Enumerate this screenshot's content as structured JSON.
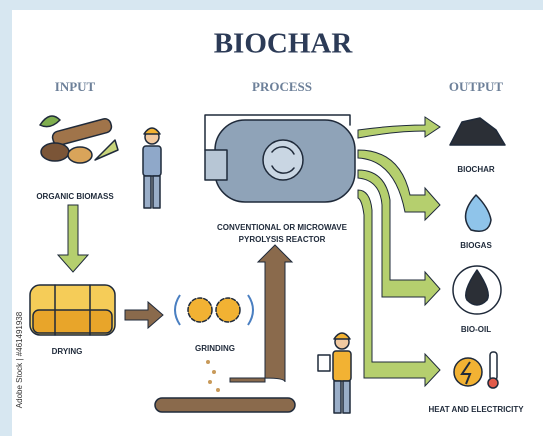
{
  "header": {
    "title": "BIOCHAR"
  },
  "columns": [
    "INPUT",
    "PROCESS",
    "OUTPUT"
  ],
  "input": {
    "biomass": "ORGANIC BIOMASS",
    "drying": "DRYING",
    "grinding": "GRINDING"
  },
  "process": {
    "reactor": [
      "CONVENTIONAL OR MICROWAVE",
      "PYROLYSIS REACTOR"
    ]
  },
  "outputs": [
    "BIOCHAR",
    "BIOGAS",
    "BIO-OIL",
    "HEAT AND ELECTRICITY"
  ],
  "credit": "Adobe Stock | #461491938"
}
